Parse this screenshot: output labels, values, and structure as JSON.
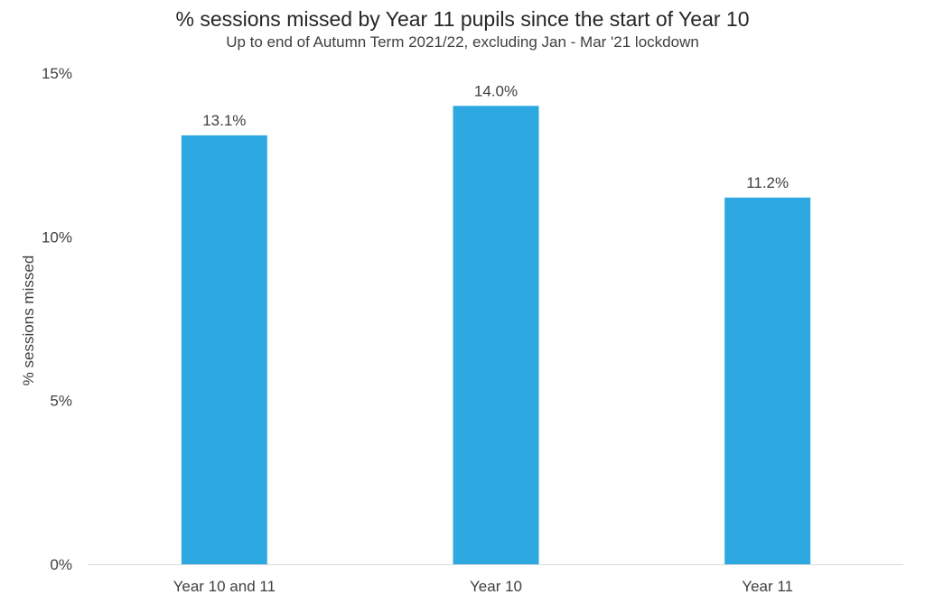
{
  "chart_data": {
    "type": "bar",
    "title": "% sessions missed by Year 11 pupils since the start of Year 10",
    "subtitle": "Up to end of Autumn Term 2021/22, excluding Jan - Mar '21 lockdown",
    "xlabel": "",
    "ylabel": "% sessions missed",
    "categories": [
      "Year 10 and 11",
      "Year 10",
      "Year 11"
    ],
    "values": [
      13.1,
      14.0,
      11.2
    ],
    "data_labels": [
      "13.1%",
      "14.0%",
      "11.2%"
    ],
    "ylim": [
      0,
      15
    ],
    "yticks": [
      0,
      5,
      10,
      15
    ],
    "ytick_labels": [
      "0%",
      "5%",
      "10%",
      "15%"
    ],
    "grid": false,
    "legend": "none",
    "bar_color": "#2EA8E0"
  }
}
